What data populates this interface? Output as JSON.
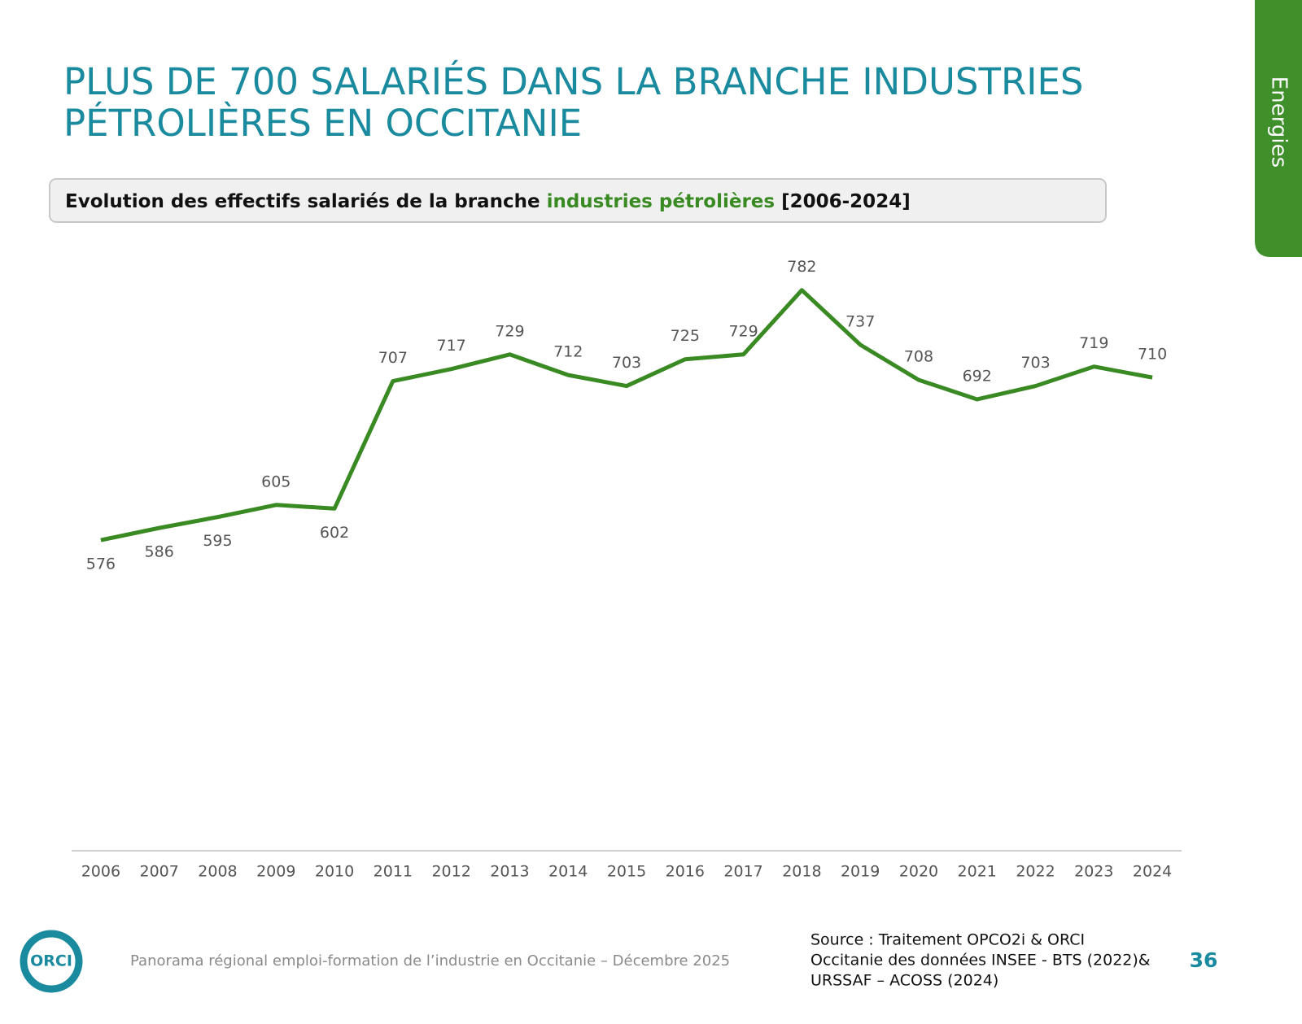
{
  "header": {
    "title_lines": [
      "PLUS DE 700 SALARIÉS DANS LA BRANCHE INDUSTRIES",
      "PÉTROLIÈRES EN OCCITANIE"
    ],
    "side_tab": "Energies"
  },
  "chart_data": {
    "type": "line",
    "title_parts": [
      "Evolution des effectifs salariés de la branche",
      "industries pétrolières",
      "[2006-2024]"
    ],
    "title_highlight_color": "#3a8a24",
    "categories": [
      "2006",
      "2007",
      "2008",
      "2009",
      "2010",
      "2011",
      "2012",
      "2013",
      "2014",
      "2015",
      "2016",
      "2017",
      "2018",
      "2019",
      "2020",
      "2021",
      "2022",
      "2023",
      "2024"
    ],
    "values": [
      576,
      586,
      595,
      605,
      602,
      707,
      717,
      729,
      712,
      703,
      725,
      729,
      782,
      737,
      708,
      692,
      703,
      719,
      710
    ],
    "color": "#3a8a24",
    "ylim": [
      320,
      820
    ]
  },
  "footer": {
    "logo": "ORCI",
    "text": "Panorama régional emploi-formation de l’industrie en Occitanie – Décembre 2025",
    "source_lines": [
      "Source : Traitement OPCO2i & ORCI",
      "Occitanie des données  INSEE - BTS (2022)&",
      "URSSAF – ACOSS (2024)"
    ],
    "page_number": "36"
  }
}
